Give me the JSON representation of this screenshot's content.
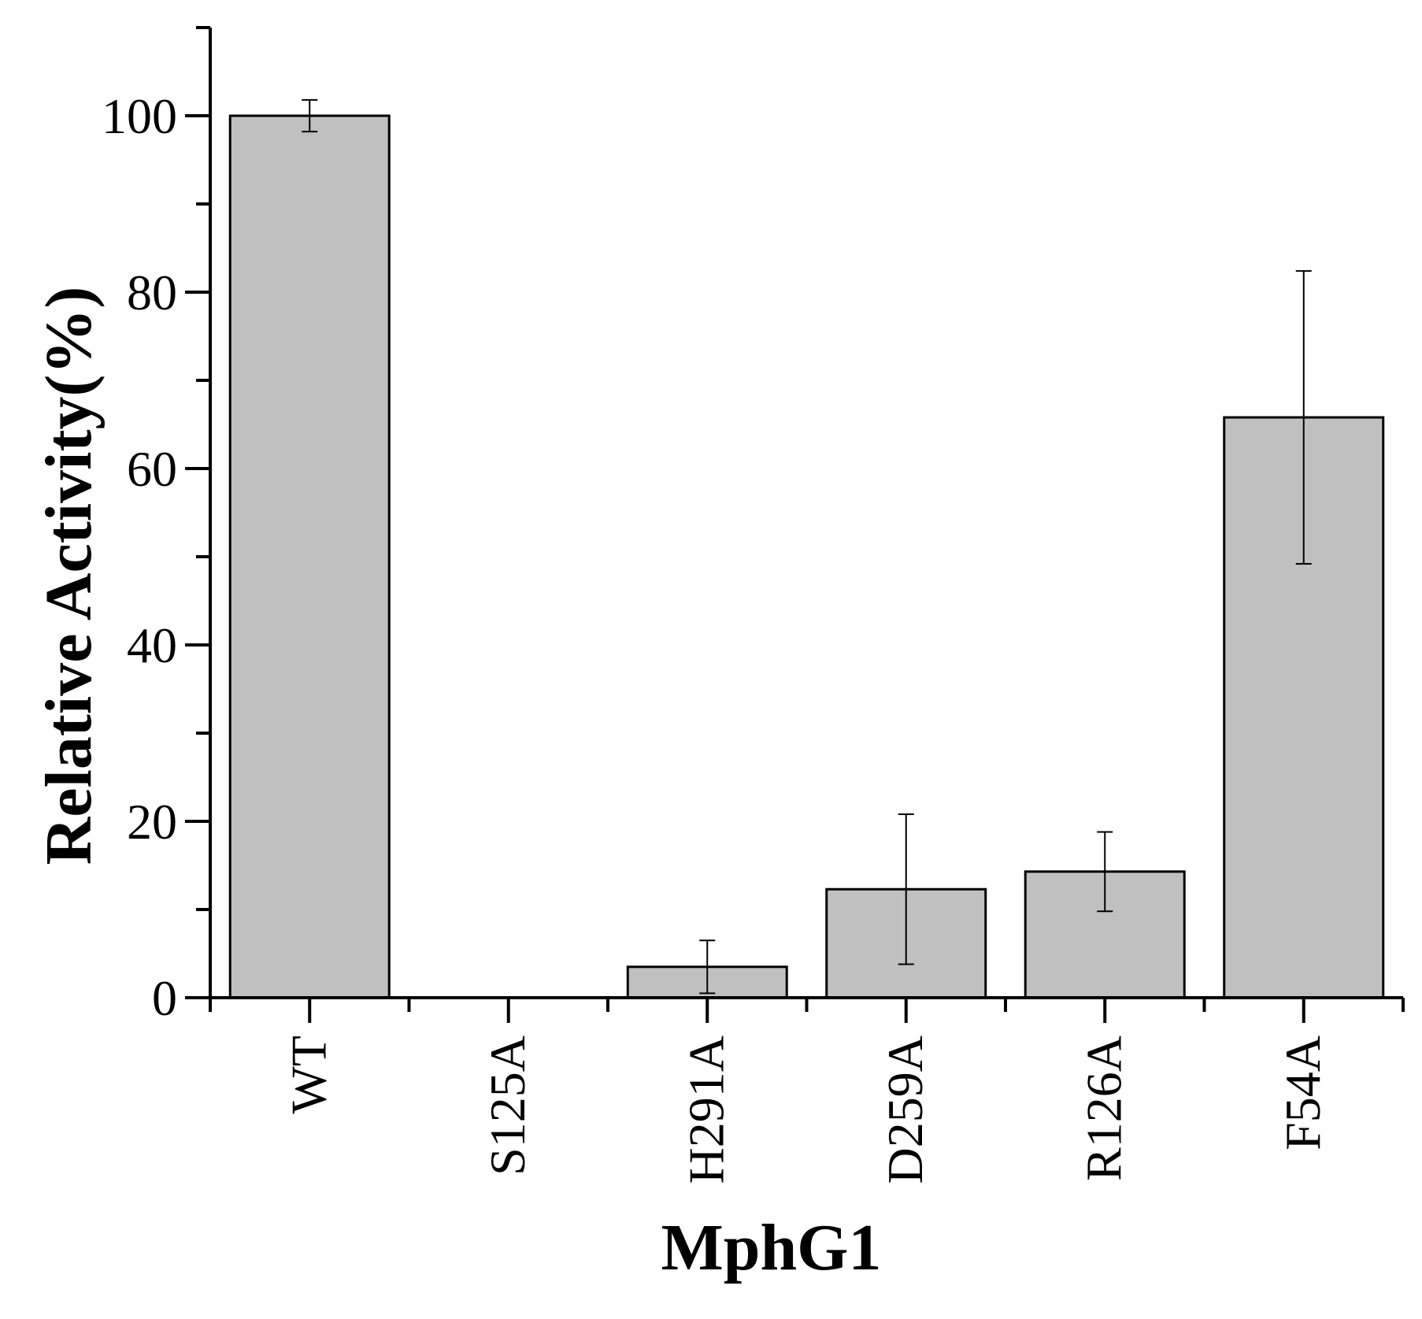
{
  "chart_data": {
    "type": "bar",
    "title": "",
    "xlabel": "MphG1",
    "ylabel": "Relative Activity(%)",
    "categories": [
      "WT",
      "S125A",
      "H291A",
      "D259A",
      "R126A",
      "F54A"
    ],
    "values": [
      100,
      0,
      3.5,
      12.3,
      14.3,
      65.8
    ],
    "errors": [
      1.8,
      0,
      3.0,
      8.5,
      4.5,
      16.6
    ],
    "ylim": [
      0,
      110
    ],
    "yticks": [
      0,
      20,
      40,
      60,
      80,
      100
    ],
    "yminor_step": 10,
    "grid": false,
    "legend": "none",
    "bar_color": "#c0c0c0",
    "edge_color": "#000000",
    "tick_label_rotation": "vertical"
  }
}
